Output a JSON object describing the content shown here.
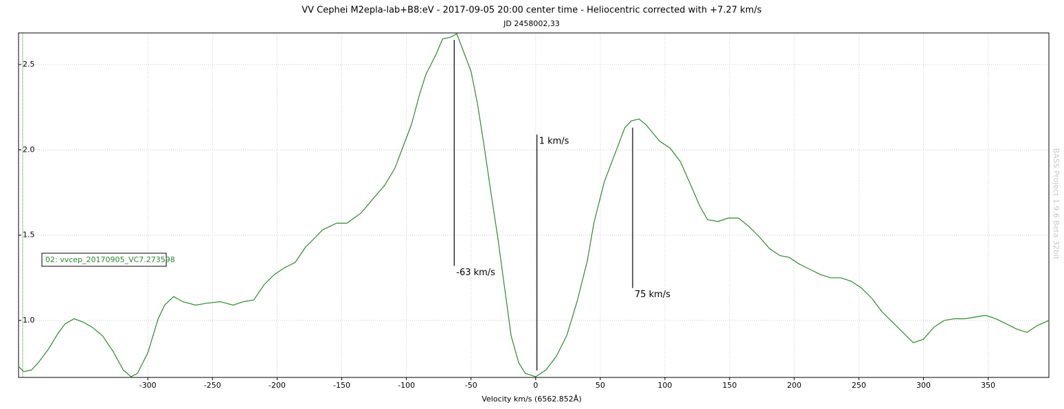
{
  "chart_data": {
    "type": "line",
    "title": "VV Cephei M2epla-lab+B8:eV - 2017-09-05 20:00 center time - Heliocentric corrected with +7.27 km/s",
    "subtitle": "JD 2458002,33",
    "x_label": "Velocity km/s (6562.852Å)",
    "watermark": "BASS Project 1.9.6 Beta 32bit",
    "xlim": [
      -400,
      397
    ],
    "ylim": [
      0.666,
      2.685
    ],
    "xticks": [
      -300,
      -250,
      -200,
      -150,
      -100,
      -50,
      0,
      50,
      100,
      150,
      200,
      250,
      300,
      350
    ],
    "yticks": [
      {
        "value": 1,
        "label": "1.0"
      },
      1.5,
      {
        "value": 2,
        "label": "2.0"
      },
      2.5
    ],
    "grid": true,
    "legend": "left",
    "x": [
      -400,
      -396,
      -390,
      -385,
      -377,
      -369,
      -364,
      -357,
      -350,
      -343,
      -335,
      -327,
      -319,
      -313,
      -308,
      -300,
      -292,
      -287,
      -280,
      -273,
      -263,
      -255,
      -244,
      -234,
      -226,
      -218,
      -210,
      -202,
      -194,
      -186,
      -178,
      -170,
      -165,
      -154,
      -146,
      -135,
      -125,
      -117,
      -109,
      -101,
      -96,
      -90,
      -85,
      -77,
      -72,
      -66,
      -61,
      -56,
      -50,
      -45,
      -40,
      -35,
      -29,
      -24,
      -19,
      -13,
      -8,
      0,
      8,
      16,
      24,
      32,
      40,
      45,
      53,
      61,
      69,
      74,
      80,
      85,
      96,
      104,
      112,
      119,
      127,
      133,
      141,
      149,
      157,
      165,
      173,
      181,
      189,
      196,
      204,
      212,
      220,
      228,
      236,
      244,
      252,
      260,
      268,
      276,
      284,
      292,
      300,
      308,
      316,
      324,
      332,
      340,
      348,
      356,
      364,
      372,
      380,
      388,
      397
    ],
    "series": [
      {
        "name": "02: vvcep_20170905_VC7.273598",
        "color": "#2a8a2a",
        "values": [
          0.73,
          0.7,
          0.71,
          0.75,
          0.83,
          0.93,
          0.98,
          1.01,
          0.99,
          0.96,
          0.91,
          0.82,
          0.71,
          0.67,
          0.69,
          0.81,
          1.01,
          1.09,
          1.14,
          1.11,
          1.09,
          1.1,
          1.11,
          1.09,
          1.11,
          1.12,
          1.21,
          1.27,
          1.31,
          1.34,
          1.43,
          1.49,
          1.53,
          1.57,
          1.57,
          1.63,
          1.72,
          1.79,
          1.89,
          2.05,
          2.15,
          2.32,
          2.44,
          2.56,
          2.65,
          2.66,
          2.68,
          2.58,
          2.46,
          2.27,
          2.03,
          1.77,
          1.47,
          1.19,
          0.91,
          0.75,
          0.69,
          0.67,
          0.71,
          0.79,
          0.91,
          1.11,
          1.35,
          1.57,
          1.81,
          1.97,
          2.13,
          2.17,
          2.18,
          2.15,
          2.05,
          2.01,
          1.93,
          1.81,
          1.67,
          1.59,
          1.58,
          1.6,
          1.6,
          1.55,
          1.49,
          1.42,
          1.38,
          1.37,
          1.33,
          1.3,
          1.27,
          1.25,
          1.25,
          1.23,
          1.19,
          1.13,
          1.05,
          0.99,
          0.93,
          0.87,
          0.89,
          0.96,
          1.0,
          1.01,
          1.01,
          1.02,
          1.03,
          1.01,
          0.98,
          0.95,
          0.93,
          0.97,
          1.0
        ]
      }
    ],
    "annotations": [
      {
        "text": "-63 km/s",
        "x": -63,
        "y1": 2.645,
        "y2": 1.32
      },
      {
        "text": "1 km/s",
        "x": 1,
        "y1": 2.09,
        "y2": 0.706
      },
      {
        "text": "75 km/s",
        "x": 75,
        "y1": 2.13,
        "y2": 1.19
      }
    ]
  }
}
